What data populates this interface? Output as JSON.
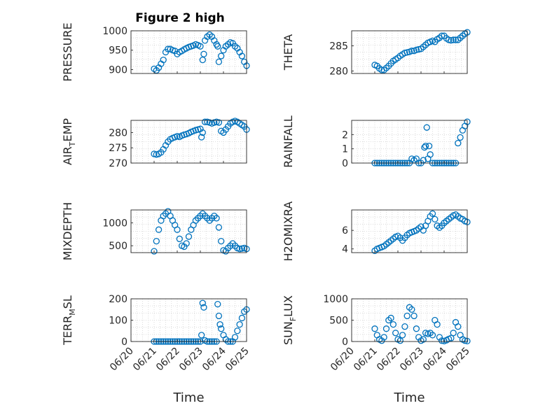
{
  "figure_title": "Figure 2 high",
  "xlabel": "Time",
  "x_tick_labels": [
    "06/20",
    "06/21",
    "06/22",
    "06/23",
    "06/24",
    "06/25"
  ],
  "colors": {
    "marker": "#0072BD",
    "axes": "#262626",
    "grid": "#dcdcdc"
  },
  "chart_data": [
    {
      "type": "scatter",
      "title": "Figure 2 high",
      "ylabel": "PRESSURE",
      "xlim": [
        20,
        25
      ],
      "ylim": [
        890,
        1000
      ],
      "yticks": [
        900,
        950,
        1000
      ],
      "grid": true,
      "x": [
        21.0,
        21.1,
        21.2,
        21.3,
        21.4,
        21.5,
        21.6,
        21.7,
        21.8,
        21.9,
        22.0,
        22.1,
        22.2,
        22.3,
        22.4,
        22.5,
        22.6,
        22.7,
        22.8,
        22.9,
        23.0,
        23.1,
        23.15,
        23.2,
        23.3,
        23.4,
        23.5,
        23.6,
        23.7,
        23.75,
        23.8,
        23.9,
        24.0,
        24.1,
        24.2,
        24.3,
        24.4,
        24.5,
        24.6,
        24.7,
        24.8,
        24.9,
        25.0
      ],
      "y": [
        902,
        898,
        905,
        915,
        925,
        945,
        953,
        953,
        950,
        948,
        940,
        945,
        948,
        952,
        955,
        958,
        960,
        962,
        965,
        963,
        960,
        925,
        940,
        975,
        985,
        990,
        985,
        975,
        965,
        960,
        920,
        935,
        950,
        960,
        965,
        970,
        968,
        960,
        955,
        945,
        935,
        920,
        910
      ]
    },
    {
      "type": "scatter",
      "title": "",
      "ylabel": "THETA",
      "xlim": [
        20,
        25
      ],
      "ylim": [
        279.5,
        288
      ],
      "yticks": [
        280,
        285
      ],
      "grid": true,
      "x": [
        21.0,
        21.1,
        21.2,
        21.3,
        21.4,
        21.5,
        21.6,
        21.7,
        21.8,
        21.9,
        22.0,
        22.1,
        22.2,
        22.3,
        22.4,
        22.5,
        22.6,
        22.7,
        22.8,
        22.9,
        23.0,
        23.1,
        23.2,
        23.3,
        23.4,
        23.5,
        23.6,
        23.7,
        23.8,
        23.9,
        24.0,
        24.1,
        24.2,
        24.3,
        24.4,
        24.5,
        24.6,
        24.7,
        24.8,
        24.9,
        25.0
      ],
      "y": [
        281.2,
        281.0,
        280.5,
        280.2,
        280.2,
        280.6,
        281.0,
        281.5,
        282.0,
        282.3,
        282.6,
        283.0,
        283.3,
        283.6,
        283.7,
        283.8,
        284.0,
        284.0,
        284.2,
        284.3,
        284.4,
        284.8,
        285.2,
        285.6,
        285.8,
        286.0,
        285.8,
        286.3,
        286.6,
        287.0,
        287.0,
        286.5,
        286.2,
        286.1,
        286.2,
        286.2,
        286.2,
        286.6,
        287.0,
        287.4,
        287.7
      ]
    },
    {
      "type": "scatter",
      "title": "",
      "ylabel": "AIR_TEMP",
      "xlim": [
        20,
        25
      ],
      "ylim": [
        270,
        284
      ],
      "yticks": [
        270,
        275,
        280
      ],
      "grid": true,
      "x": [
        21.0,
        21.1,
        21.2,
        21.3,
        21.4,
        21.5,
        21.6,
        21.7,
        21.8,
        21.9,
        22.0,
        22.1,
        22.2,
        22.3,
        22.4,
        22.5,
        22.6,
        22.7,
        22.8,
        22.9,
        23.0,
        23.05,
        23.1,
        23.2,
        23.3,
        23.4,
        23.5,
        23.6,
        23.7,
        23.8,
        23.9,
        24.0,
        24.1,
        24.2,
        24.3,
        24.4,
        24.5,
        24.6,
        24.7,
        24.8,
        24.9,
        25.0
      ],
      "y": [
        273.0,
        272.8,
        273.0,
        273.5,
        274.5,
        275.8,
        277.0,
        277.8,
        278.2,
        278.5,
        278.8,
        278.6,
        279.0,
        279.3,
        279.5,
        279.8,
        280.2,
        280.5,
        280.8,
        281.0,
        281.2,
        278.5,
        280.0,
        283.5,
        283.5,
        283.3,
        283.0,
        283.3,
        283.5,
        283.3,
        280.5,
        280.0,
        281.0,
        282.0,
        283.0,
        283.5,
        283.8,
        283.5,
        283.0,
        282.5,
        282.0,
        281.0
      ]
    },
    {
      "type": "scatter",
      "title": "",
      "ylabel": "RAINFALL",
      "xlim": [
        20,
        25
      ],
      "ylim": [
        0,
        3
      ],
      "yticks": [
        0,
        1,
        2
      ],
      "grid": true,
      "x": [
        21.0,
        21.1,
        21.2,
        21.3,
        21.4,
        21.5,
        21.6,
        21.7,
        21.8,
        21.9,
        22.0,
        22.1,
        22.2,
        22.3,
        22.4,
        22.5,
        22.6,
        22.7,
        22.8,
        22.9,
        23.0,
        23.1,
        23.15,
        23.2,
        23.25,
        23.3,
        23.35,
        23.4,
        23.5,
        23.6,
        23.7,
        23.8,
        23.9,
        24.0,
        24.1,
        24.2,
        24.3,
        24.4,
        24.5,
        24.6,
        24.7,
        24.8,
        24.9,
        25.0
      ],
      "y": [
        0,
        0,
        0,
        0,
        0,
        0,
        0,
        0,
        0,
        0,
        0,
        0,
        0,
        0,
        0,
        0,
        0.3,
        0.2,
        0.3,
        0,
        0,
        0.2,
        1.1,
        1.2,
        2.5,
        0.3,
        1.2,
        0.6,
        0,
        0,
        0,
        0,
        0,
        0,
        0,
        0,
        0,
        0,
        0,
        1.4,
        1.8,
        2.3,
        2.6,
        2.9
      ]
    },
    {
      "type": "scatter",
      "title": "",
      "ylabel": "MIXDEPTH",
      "xlim": [
        20,
        25
      ],
      "ylim": [
        350,
        1280
      ],
      "yticks": [
        500,
        1000
      ],
      "grid": true,
      "x": [
        21.0,
        21.1,
        21.2,
        21.3,
        21.4,
        21.5,
        21.6,
        21.7,
        21.8,
        21.9,
        22.0,
        22.1,
        22.2,
        22.3,
        22.4,
        22.5,
        22.6,
        22.7,
        22.8,
        22.9,
        23.0,
        23.1,
        23.2,
        23.3,
        23.4,
        23.5,
        23.6,
        23.7,
        23.8,
        23.9,
        24.0,
        24.1,
        24.2,
        24.3,
        24.4,
        24.5,
        24.6,
        24.7,
        24.8,
        24.9,
        25.0
      ],
      "y": [
        380,
        600,
        850,
        1050,
        1150,
        1200,
        1250,
        1150,
        1050,
        950,
        850,
        650,
        500,
        480,
        550,
        700,
        850,
        950,
        1050,
        1100,
        1150,
        1200,
        1150,
        1100,
        1050,
        1100,
        1150,
        1100,
        900,
        600,
        400,
        380,
        450,
        500,
        550,
        500,
        450,
        430,
        440,
        450,
        430
      ]
    },
    {
      "type": "scatter",
      "title": "",
      "ylabel": "H2OMIXRA",
      "xlim": [
        20,
        25
      ],
      "ylim": [
        3.6,
        8.2
      ],
      "yticks": [
        4,
        6
      ],
      "grid": true,
      "x": [
        21.0,
        21.1,
        21.2,
        21.3,
        21.4,
        21.5,
        21.6,
        21.7,
        21.8,
        21.9,
        22.0,
        22.1,
        22.2,
        22.3,
        22.4,
        22.5,
        22.6,
        22.7,
        22.8,
        22.9,
        23.0,
        23.1,
        23.2,
        23.3,
        23.4,
        23.5,
        23.6,
        23.7,
        23.8,
        23.9,
        24.0,
        24.1,
        24.2,
        24.3,
        24.4,
        24.5,
        24.6,
        24.7,
        24.8,
        24.9,
        25.0
      ],
      "y": [
        3.8,
        4.0,
        4.1,
        4.2,
        4.3,
        4.5,
        4.7,
        4.9,
        5.1,
        5.3,
        5.4,
        5.2,
        4.9,
        5.2,
        5.5,
        5.7,
        5.8,
        5.9,
        6.0,
        6.2,
        6.4,
        6.0,
        6.5,
        7.0,
        7.5,
        7.8,
        7.2,
        6.5,
        6.3,
        6.5,
        6.8,
        7.0,
        7.2,
        7.4,
        7.6,
        7.7,
        7.5,
        7.3,
        7.2,
        7.0,
        6.9
      ]
    },
    {
      "type": "scatter",
      "title": "",
      "ylabel": "TERR_MSL",
      "xlim": [
        20,
        25
      ],
      "ylim": [
        0,
        200
      ],
      "yticks": [
        0,
        100,
        200
      ],
      "grid": true,
      "x": [
        21.0,
        21.1,
        21.2,
        21.3,
        21.4,
        21.5,
        21.6,
        21.7,
        21.8,
        21.9,
        22.0,
        22.1,
        22.2,
        22.3,
        22.4,
        22.5,
        22.6,
        22.7,
        22.8,
        22.9,
        23.0,
        23.05,
        23.1,
        23.15,
        23.2,
        23.3,
        23.4,
        23.5,
        23.6,
        23.7,
        23.75,
        23.8,
        23.85,
        23.9,
        24.0,
        24.1,
        24.2,
        24.3,
        24.4,
        24.5,
        24.6,
        24.7,
        24.8,
        24.9,
        25.0
      ],
      "y": [
        0,
        0,
        0,
        0,
        0,
        0,
        0,
        0,
        0,
        0,
        0,
        0,
        0,
        0,
        0,
        0,
        0,
        0,
        0,
        0,
        0,
        30,
        180,
        160,
        5,
        0,
        0,
        0,
        0,
        0,
        175,
        120,
        80,
        60,
        30,
        10,
        0,
        0,
        0,
        20,
        50,
        80,
        110,
        140,
        150
      ]
    },
    {
      "type": "scatter",
      "title": "",
      "ylabel": "SUN_FLUX",
      "xlim": [
        20,
        25
      ],
      "ylim": [
        0,
        1000
      ],
      "yticks": [
        0,
        500,
        1000
      ],
      "grid": true,
      "x": [
        21.0,
        21.1,
        21.2,
        21.3,
        21.4,
        21.5,
        21.6,
        21.7,
        21.8,
        21.9,
        22.0,
        22.1,
        22.2,
        22.3,
        22.4,
        22.5,
        22.6,
        22.7,
        22.8,
        22.9,
        23.0,
        23.1,
        23.2,
        23.3,
        23.4,
        23.5,
        23.6,
        23.7,
        23.8,
        23.9,
        24.0,
        24.1,
        24.2,
        24.3,
        24.4,
        24.5,
        24.6,
        24.7,
        24.8,
        24.9,
        25.0
      ],
      "y": [
        300,
        150,
        50,
        20,
        100,
        300,
        500,
        550,
        400,
        200,
        50,
        20,
        150,
        350,
        600,
        800,
        750,
        600,
        300,
        100,
        20,
        50,
        200,
        180,
        200,
        150,
        500,
        400,
        100,
        20,
        10,
        30,
        60,
        80,
        200,
        450,
        350,
        150,
        50,
        20,
        10
      ]
    }
  ]
}
